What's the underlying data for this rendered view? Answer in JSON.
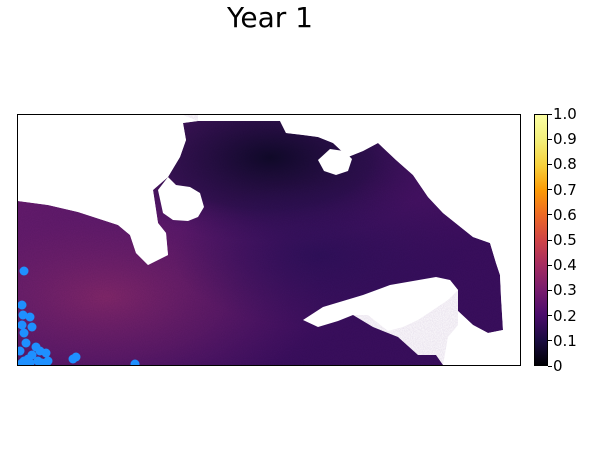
{
  "chart_data": {
    "type": "heatmap",
    "title": "Year 1",
    "xlabel": "",
    "ylabel": "",
    "colormap": "inferno",
    "colorbar": {
      "range": [
        0,
        1.0
      ],
      "ticks": [
        0,
        0.1,
        0.2,
        0.3,
        0.4,
        0.5,
        0.6,
        0.7,
        0.8,
        0.9,
        1.0
      ],
      "tick_labels": [
        "0",
        "0.1",
        "0.2",
        "0.3",
        "0.4",
        "0.5",
        "0.6",
        "0.7",
        "0.8",
        "0.9",
        "1.0"
      ]
    },
    "value_range_shown": [
      0.05,
      0.45
    ],
    "background_color": "#ffffff",
    "no_data_color": "#ffffff",
    "points": {
      "color": "#1e90ff",
      "shape": "circle"
    }
  }
}
